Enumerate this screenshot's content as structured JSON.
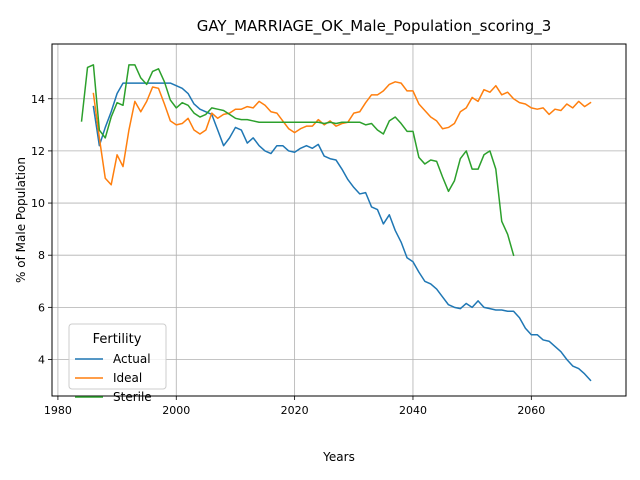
{
  "chart_data": {
    "type": "line",
    "title": "GAY_MARRIAGE_OK_Male_Population_scoring_3",
    "xlabel": "Years",
    "ylabel": "% of Male Population",
    "xlim": [
      1979,
      2076
    ],
    "ylim": [
      2.6,
      16.1
    ],
    "xticks": [
      1980,
      2000,
      2020,
      2040,
      2060
    ],
    "yticks": [
      4,
      6,
      8,
      10,
      12,
      14
    ],
    "grid": true,
    "legend": {
      "title": "Fertility",
      "placement": "lower-left"
    },
    "series": [
      {
        "name": "Actual",
        "color": "#1f77b4",
        "x": [
          1986,
          1987,
          1988,
          1989,
          1990,
          1991,
          1992,
          1993,
          1994,
          1995,
          1996,
          1997,
          1998,
          1999,
          2000,
          2001,
          2002,
          2003,
          2004,
          2005,
          2006,
          2007,
          2008,
          2009,
          2010,
          2011,
          2012,
          2013,
          2014,
          2015,
          2016,
          2017,
          2018,
          2019,
          2020,
          2021,
          2022,
          2023,
          2024,
          2025,
          2026,
          2027,
          2028,
          2029,
          2030,
          2031,
          2032,
          2033,
          2034,
          2035,
          2036,
          2037,
          2038,
          2039,
          2040,
          2041,
          2042,
          2043,
          2044,
          2045,
          2046,
          2047,
          2048,
          2049,
          2050,
          2051,
          2052,
          2053,
          2054,
          2055,
          2056,
          2057,
          2058,
          2059,
          2060,
          2061,
          2062,
          2063,
          2064,
          2065,
          2066,
          2067,
          2068,
          2069,
          2070
        ],
        "values": [
          13.7,
          12.2,
          12.9,
          13.5,
          14.2,
          14.6,
          14.6,
          14.6,
          14.6,
          14.6,
          14.6,
          14.6,
          14.6,
          14.6,
          14.5,
          14.4,
          14.2,
          13.8,
          13.6,
          13.5,
          13.4,
          12.8,
          12.2,
          12.5,
          12.9,
          12.8,
          12.3,
          12.5,
          12.2,
          12.0,
          11.9,
          12.2,
          12.2,
          12.0,
          11.95,
          12.1,
          12.2,
          12.1,
          12.25,
          11.8,
          11.7,
          11.65,
          11.3,
          10.9,
          10.6,
          10.35,
          10.4,
          9.85,
          9.75,
          9.2,
          9.55,
          8.95,
          8.5,
          7.9,
          7.75,
          7.35,
          7.0,
          6.9,
          6.7,
          6.4,
          6.1,
          6.0,
          5.95,
          6.15,
          6.0,
          6.25,
          6.0,
          5.95,
          5.9,
          5.9,
          5.85,
          5.85,
          5.6,
          5.2,
          4.95,
          4.95,
          4.75,
          4.7,
          4.5,
          4.3,
          4.0,
          3.75,
          3.65,
          3.45,
          3.2
        ]
      },
      {
        "name": "Ideal",
        "color": "#ff7f0e",
        "x": [
          1986,
          1987,
          1988,
          1989,
          1990,
          1991,
          1992,
          1993,
          1994,
          1995,
          1996,
          1997,
          1998,
          1999,
          2000,
          2001,
          2002,
          2003,
          2004,
          2005,
          2006,
          2007,
          2008,
          2009,
          2010,
          2011,
          2012,
          2013,
          2014,
          2015,
          2016,
          2017,
          2018,
          2019,
          2020,
          2021,
          2022,
          2023,
          2024,
          2025,
          2026,
          2027,
          2028,
          2029,
          2030,
          2031,
          2032,
          2033,
          2034,
          2035,
          2036,
          2037,
          2038,
          2039,
          2040,
          2041,
          2042,
          2043,
          2044,
          2045,
          2046,
          2047,
          2048,
          2049,
          2050,
          2051,
          2052,
          2053,
          2054,
          2055,
          2056,
          2057,
          2058,
          2059,
          2060,
          2061,
          2062,
          2063,
          2064,
          2065,
          2066,
          2067,
          2068,
          2069,
          2070
        ],
        "values": [
          14.2,
          12.5,
          10.95,
          10.7,
          11.85,
          11.4,
          12.8,
          13.9,
          13.5,
          13.9,
          14.45,
          14.4,
          13.8,
          13.15,
          13.0,
          13.05,
          13.25,
          12.8,
          12.65,
          12.8,
          13.45,
          13.25,
          13.4,
          13.45,
          13.6,
          13.6,
          13.7,
          13.65,
          13.9,
          13.75,
          13.5,
          13.45,
          13.15,
          12.85,
          12.7,
          12.85,
          12.95,
          12.95,
          13.2,
          13.0,
          13.15,
          12.95,
          13.05,
          13.1,
          13.45,
          13.5,
          13.85,
          14.15,
          14.15,
          14.3,
          14.55,
          14.65,
          14.6,
          14.3,
          14.3,
          13.8,
          13.55,
          13.3,
          13.15,
          12.85,
          12.9,
          13.05,
          13.5,
          13.65,
          14.05,
          13.9,
          14.35,
          14.25,
          14.5,
          14.15,
          14.25,
          14.0,
          13.85,
          13.8,
          13.65,
          13.6,
          13.65,
          13.4,
          13.6,
          13.55,
          13.8,
          13.65,
          13.9,
          13.7,
          13.85
        ]
      },
      {
        "name": "Sterile",
        "color": "#2ca02c",
        "x": [
          1984,
          1985,
          1986,
          1987,
          1988,
          1989,
          1990,
          1991,
          1992,
          1993,
          1994,
          1995,
          1996,
          1997,
          1998,
          1999,
          2000,
          2001,
          2002,
          2003,
          2004,
          2005,
          2006,
          2007,
          2008,
          2009,
          2010,
          2011,
          2012,
          2013,
          2014,
          2015,
          2016,
          2017,
          2018,
          2019,
          2020,
          2021,
          2022,
          2023,
          2024,
          2025,
          2026,
          2027,
          2028,
          2029,
          2030,
          2031,
          2032,
          2033,
          2034,
          2035,
          2036,
          2037,
          2038,
          2039,
          2040,
          2041,
          2042,
          2043,
          2044,
          2045,
          2046,
          2047,
          2048,
          2049,
          2050,
          2051,
          2052,
          2053,
          2054,
          2055,
          2056,
          2057
        ],
        "values": [
          13.15,
          15.2,
          15.3,
          12.8,
          12.5,
          13.3,
          13.85,
          13.75,
          15.3,
          15.3,
          14.8,
          14.55,
          15.05,
          15.15,
          14.65,
          13.95,
          13.65,
          13.85,
          13.75,
          13.45,
          13.3,
          13.4,
          13.65,
          13.6,
          13.55,
          13.4,
          13.25,
          13.2,
          13.2,
          13.15,
          13.1,
          13.1,
          13.1,
          13.1,
          13.1,
          13.1,
          13.1,
          13.1,
          13.1,
          13.1,
          13.1,
          13.05,
          13.1,
          13.05,
          13.1,
          13.1,
          13.1,
          13.1,
          13.0,
          13.05,
          12.8,
          12.65,
          13.15,
          13.3,
          13.05,
          12.75,
          12.75,
          11.75,
          11.5,
          11.65,
          11.6,
          11.0,
          10.45,
          10.85,
          11.7,
          12.0,
          11.3,
          11.3,
          11.85,
          12.0,
          11.3,
          9.3,
          8.8,
          8.0
        ]
      }
    ]
  }
}
